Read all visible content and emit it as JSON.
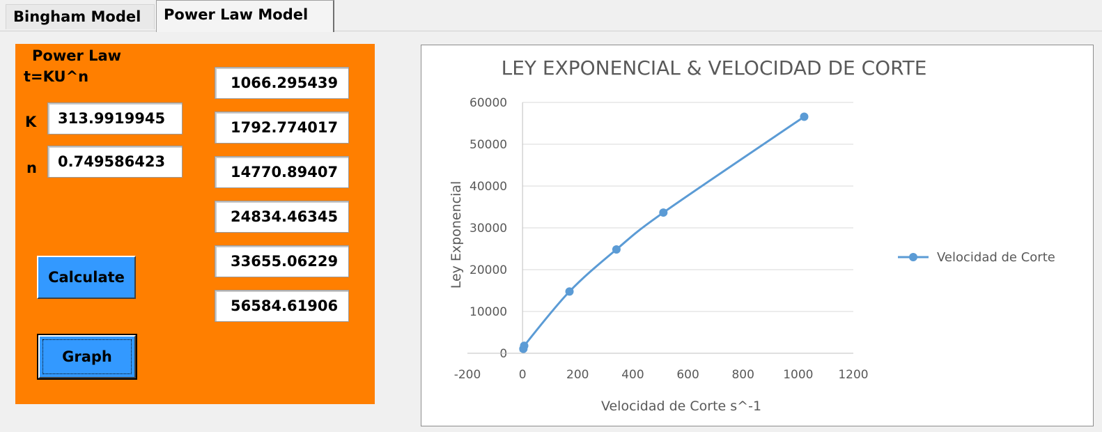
{
  "tabs": [
    {
      "label": "Bingham Model",
      "active": false
    },
    {
      "label": "Power Law Model",
      "active": true
    }
  ],
  "panel": {
    "title_line1": "Power Law",
    "title_line2": "t=KU^n",
    "k_label": "K",
    "k_value": "313.9919945",
    "n_label": "n",
    "n_value": "0.749586423",
    "results": [
      "1066.295439",
      "1792.774017",
      "14770.89407",
      "24834.46345",
      "33655.06229",
      "56584.61906"
    ],
    "calculate_label": "Calculate",
    "graph_label": "Graph",
    "bg_color": "#ff7f00",
    "button_color": "#3399ff"
  },
  "chart_data": {
    "type": "scatter",
    "title": "LEY EXPONENCIAL & VELOCIDAD DE CORTE",
    "xlabel": "Velocidad de Corte s^-1",
    "ylabel": "Ley Exponencial",
    "xlim": [
      -200,
      1200
    ],
    "ylim": [
      0,
      60000
    ],
    "x_ticks": [
      "-200",
      "0",
      "200",
      "400",
      "600",
      "800",
      "1000",
      "1200"
    ],
    "y_ticks": [
      "0",
      "10000",
      "20000",
      "30000",
      "40000",
      "50000",
      "60000"
    ],
    "series": [
      {
        "name": "Velocidad de Corte",
        "color": "#5b9bd5",
        "smooth": true,
        "x": [
          3,
          6,
          170.3,
          340.6,
          510.9,
          1021.8
        ],
        "y": [
          1066.295439,
          1792.774017,
          14770.89407,
          24834.46345,
          33655.06229,
          56584.61906
        ]
      }
    ],
    "grid": true,
    "legend_position": "right"
  }
}
